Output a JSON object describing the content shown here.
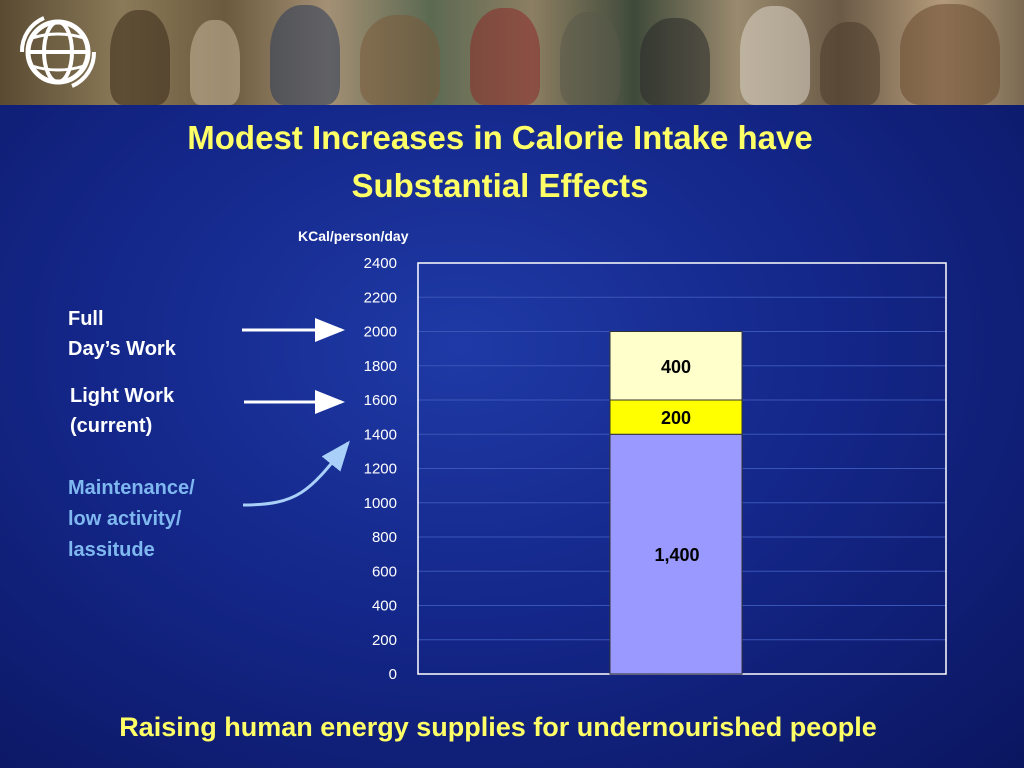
{
  "slide": {
    "title_line1": "Modest Increases in Calorie Intake have",
    "title_line2": "Substantial Effects",
    "subtitle": "Raising human energy supplies for undernourished people"
  },
  "labels": {
    "full_line1": "Full",
    "full_line2": "Day’s Work",
    "light_line1": "Light Work",
    "light_line2": "(current)",
    "maint_line1": "Maintenance/",
    "maint_line2": "low activity/",
    "maint_line3": "lassitude"
  },
  "colors": {
    "title": "#ffff66",
    "base_segment": "#9999ff",
    "middle_segment": "#ffff00",
    "top_segment": "#ffffcc",
    "maintenance_text": "#7fb8f0"
  },
  "chart_data": {
    "type": "bar",
    "stacked": true,
    "ylabel": "KCal/person/day",
    "ylim": [
      0,
      2400
    ],
    "yticks": [
      0,
      200,
      400,
      600,
      800,
      1000,
      1200,
      1400,
      1600,
      1800,
      2000,
      2200,
      2400
    ],
    "grid": true,
    "segments": [
      {
        "value": 1400,
        "label": "1,400",
        "color": "#9999ff"
      },
      {
        "value": 200,
        "label": "200",
        "color": "#ffff00"
      },
      {
        "value": 400,
        "label": "400",
        "color": "#ffffcc"
      }
    ]
  }
}
